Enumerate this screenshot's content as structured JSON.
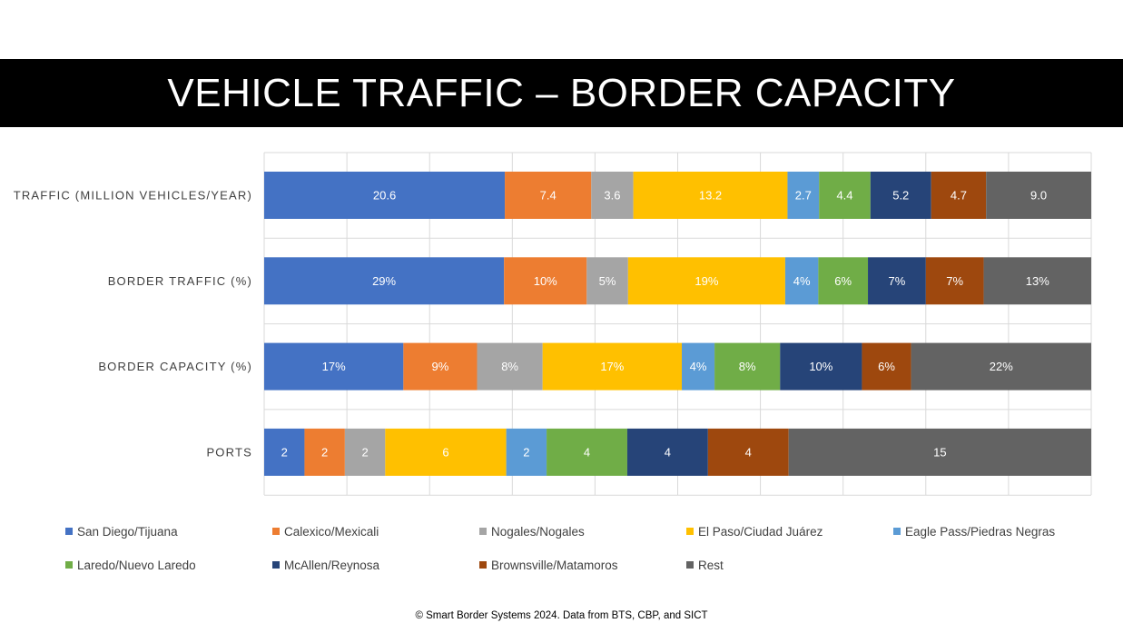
{
  "title": "VEHICLE TRAFFIC – BORDER CAPACITY",
  "footer": "© Smart Border Systems 2024. Data from BTS, CBP, and SICT",
  "chart_data": {
    "type": "bar",
    "orientation": "horizontal",
    "stacked": "100%",
    "grid": true,
    "legend_position": "bottom",
    "categories": [
      "TRAFFIC (MILLION VEHICLES/YEAR)",
      "BORDER TRAFFIC (%)",
      "BORDER CAPACITY (%)",
      "PORTS"
    ],
    "series": [
      {
        "name": "San Diego/Tijuana",
        "color": "#4472C4",
        "values": [
          20.6,
          29,
          17,
          2
        ],
        "labels": [
          "20.6",
          "29%",
          "17%",
          "2"
        ]
      },
      {
        "name": "Calexico/Mexicali",
        "color": "#ED7D31",
        "values": [
          7.4,
          10,
          9,
          2
        ],
        "labels": [
          "7.4",
          "10%",
          "9%",
          "2"
        ]
      },
      {
        "name": "Nogales/Nogales",
        "color": "#A5A5A5",
        "values": [
          3.6,
          5,
          8,
          2
        ],
        "labels": [
          "3.6",
          "5%",
          "8%",
          "2"
        ]
      },
      {
        "name": "El Paso/Ciudad Juárez",
        "color": "#FFC000",
        "values": [
          13.2,
          19,
          17,
          6
        ],
        "labels": [
          "13.2",
          "19%",
          "17%",
          "6"
        ]
      },
      {
        "name": "Eagle Pass/Piedras Negras",
        "color": "#5B9BD5",
        "values": [
          2.7,
          4,
          4,
          2
        ],
        "labels": [
          "2.7",
          "4%",
          "4%",
          "2"
        ]
      },
      {
        "name": "Laredo/Nuevo Laredo",
        "color": "#70AD47",
        "values": [
          4.4,
          6,
          8,
          4
        ],
        "labels": [
          "4.4",
          "6%",
          "8%",
          "4"
        ]
      },
      {
        "name": "McAllen/Reynosa",
        "color": "#264478",
        "values": [
          5.2,
          7,
          10,
          4
        ],
        "labels": [
          "5.2",
          "7%",
          "10%",
          "4"
        ]
      },
      {
        "name": "Brownsville/Matamoros",
        "color": "#9E480E",
        "values": [
          4.7,
          7,
          6,
          4
        ],
        "labels": [
          "4.7",
          "7%",
          "6%",
          "4"
        ]
      },
      {
        "name": "Rest",
        "color": "#636363",
        "values": [
          9.0,
          13,
          22,
          15
        ],
        "labels": [
          "9.0",
          "13%",
          "22%",
          "15"
        ]
      }
    ]
  }
}
